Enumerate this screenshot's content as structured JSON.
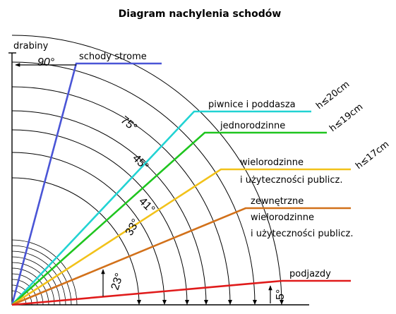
{
  "title": "Diagram nachylenia schodów",
  "top_label": "drabiny",
  "colors": {
    "axis": "#000000",
    "arc": "#000000",
    "steep": "#4a55d6",
    "basement": "#22d3d3",
    "single_family": "#1fc51f",
    "multi_family": "#f2c21a",
    "outdoor": "#d2711a",
    "ramps": "#e01b1b"
  },
  "angles": {
    "a90": "90°",
    "a75": "75°",
    "a45": "45°",
    "a41": "41°",
    "a33": "33°",
    "a23": "23°",
    "a5": "5°"
  },
  "categories": {
    "steep": "schody strome",
    "basement": "piwnice i poddasza",
    "single_family": "jednorodzinne",
    "multi_family_1": "wielorodzinne",
    "multi_family_2": "i użyteczności publicz.",
    "outdoor_1": "zewnętrzne",
    "outdoor_2": "wielorodzinne",
    "outdoor_3": "i użyteczności publicz.",
    "ramps": "podjazdy"
  },
  "heights": {
    "h20": "h≤20cm",
    "h19": "h≤19cm",
    "h17": "h≤17cm"
  }
}
